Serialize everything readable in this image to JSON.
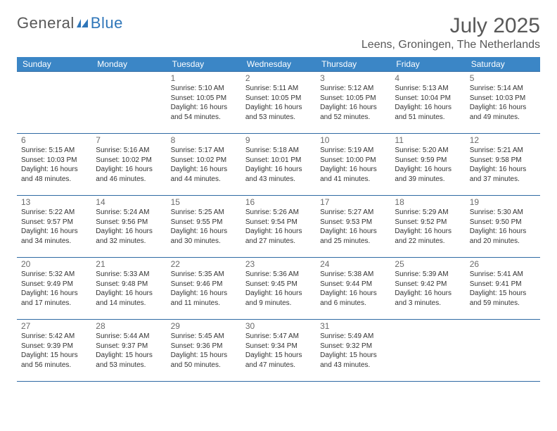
{
  "logo": {
    "general": "General",
    "blue": "Blue"
  },
  "title": "July 2025",
  "location": "Leens, Groningen, The Netherlands",
  "styling": {
    "header_bg": "#3b86c6",
    "header_fg": "#ffffff",
    "border_color": "#2f6aa3",
    "logo_gray": "#585858",
    "logo_blue": "#2f76b9",
    "title_color": "#585858",
    "text_color": "#333333",
    "body_bg": "#ffffff",
    "title_fontsize": 30,
    "location_fontsize": 16,
    "header_fontsize": 12,
    "daynum_fontsize": 12,
    "info_fontsize": 10
  },
  "weekdays": [
    "Sunday",
    "Monday",
    "Tuesday",
    "Wednesday",
    "Thursday",
    "Friday",
    "Saturday"
  ],
  "weeks": [
    [
      null,
      null,
      {
        "n": "1",
        "sr": "5:10 AM",
        "ss": "10:05 PM",
        "dl": "16 hours and 54 minutes."
      },
      {
        "n": "2",
        "sr": "5:11 AM",
        "ss": "10:05 PM",
        "dl": "16 hours and 53 minutes."
      },
      {
        "n": "3",
        "sr": "5:12 AM",
        "ss": "10:05 PM",
        "dl": "16 hours and 52 minutes."
      },
      {
        "n": "4",
        "sr": "5:13 AM",
        "ss": "10:04 PM",
        "dl": "16 hours and 51 minutes."
      },
      {
        "n": "5",
        "sr": "5:14 AM",
        "ss": "10:03 PM",
        "dl": "16 hours and 49 minutes."
      }
    ],
    [
      {
        "n": "6",
        "sr": "5:15 AM",
        "ss": "10:03 PM",
        "dl": "16 hours and 48 minutes."
      },
      {
        "n": "7",
        "sr": "5:16 AM",
        "ss": "10:02 PM",
        "dl": "16 hours and 46 minutes."
      },
      {
        "n": "8",
        "sr": "5:17 AM",
        "ss": "10:02 PM",
        "dl": "16 hours and 44 minutes."
      },
      {
        "n": "9",
        "sr": "5:18 AM",
        "ss": "10:01 PM",
        "dl": "16 hours and 43 minutes."
      },
      {
        "n": "10",
        "sr": "5:19 AM",
        "ss": "10:00 PM",
        "dl": "16 hours and 41 minutes."
      },
      {
        "n": "11",
        "sr": "5:20 AM",
        "ss": "9:59 PM",
        "dl": "16 hours and 39 minutes."
      },
      {
        "n": "12",
        "sr": "5:21 AM",
        "ss": "9:58 PM",
        "dl": "16 hours and 37 minutes."
      }
    ],
    [
      {
        "n": "13",
        "sr": "5:22 AM",
        "ss": "9:57 PM",
        "dl": "16 hours and 34 minutes."
      },
      {
        "n": "14",
        "sr": "5:24 AM",
        "ss": "9:56 PM",
        "dl": "16 hours and 32 minutes."
      },
      {
        "n": "15",
        "sr": "5:25 AM",
        "ss": "9:55 PM",
        "dl": "16 hours and 30 minutes."
      },
      {
        "n": "16",
        "sr": "5:26 AM",
        "ss": "9:54 PM",
        "dl": "16 hours and 27 minutes."
      },
      {
        "n": "17",
        "sr": "5:27 AM",
        "ss": "9:53 PM",
        "dl": "16 hours and 25 minutes."
      },
      {
        "n": "18",
        "sr": "5:29 AM",
        "ss": "9:52 PM",
        "dl": "16 hours and 22 minutes."
      },
      {
        "n": "19",
        "sr": "5:30 AM",
        "ss": "9:50 PM",
        "dl": "16 hours and 20 minutes."
      }
    ],
    [
      {
        "n": "20",
        "sr": "5:32 AM",
        "ss": "9:49 PM",
        "dl": "16 hours and 17 minutes."
      },
      {
        "n": "21",
        "sr": "5:33 AM",
        "ss": "9:48 PM",
        "dl": "16 hours and 14 minutes."
      },
      {
        "n": "22",
        "sr": "5:35 AM",
        "ss": "9:46 PM",
        "dl": "16 hours and 11 minutes."
      },
      {
        "n": "23",
        "sr": "5:36 AM",
        "ss": "9:45 PM",
        "dl": "16 hours and 9 minutes."
      },
      {
        "n": "24",
        "sr": "5:38 AM",
        "ss": "9:44 PM",
        "dl": "16 hours and 6 minutes."
      },
      {
        "n": "25",
        "sr": "5:39 AM",
        "ss": "9:42 PM",
        "dl": "16 hours and 3 minutes."
      },
      {
        "n": "26",
        "sr": "5:41 AM",
        "ss": "9:41 PM",
        "dl": "15 hours and 59 minutes."
      }
    ],
    [
      {
        "n": "27",
        "sr": "5:42 AM",
        "ss": "9:39 PM",
        "dl": "15 hours and 56 minutes."
      },
      {
        "n": "28",
        "sr": "5:44 AM",
        "ss": "9:37 PM",
        "dl": "15 hours and 53 minutes."
      },
      {
        "n": "29",
        "sr": "5:45 AM",
        "ss": "9:36 PM",
        "dl": "15 hours and 50 minutes."
      },
      {
        "n": "30",
        "sr": "5:47 AM",
        "ss": "9:34 PM",
        "dl": "15 hours and 47 minutes."
      },
      {
        "n": "31",
        "sr": "5:49 AM",
        "ss": "9:32 PM",
        "dl": "15 hours and 43 minutes."
      },
      null,
      null
    ]
  ],
  "labels": {
    "sunrise": "Sunrise:",
    "sunset": "Sunset:",
    "daylight": "Daylight:"
  }
}
